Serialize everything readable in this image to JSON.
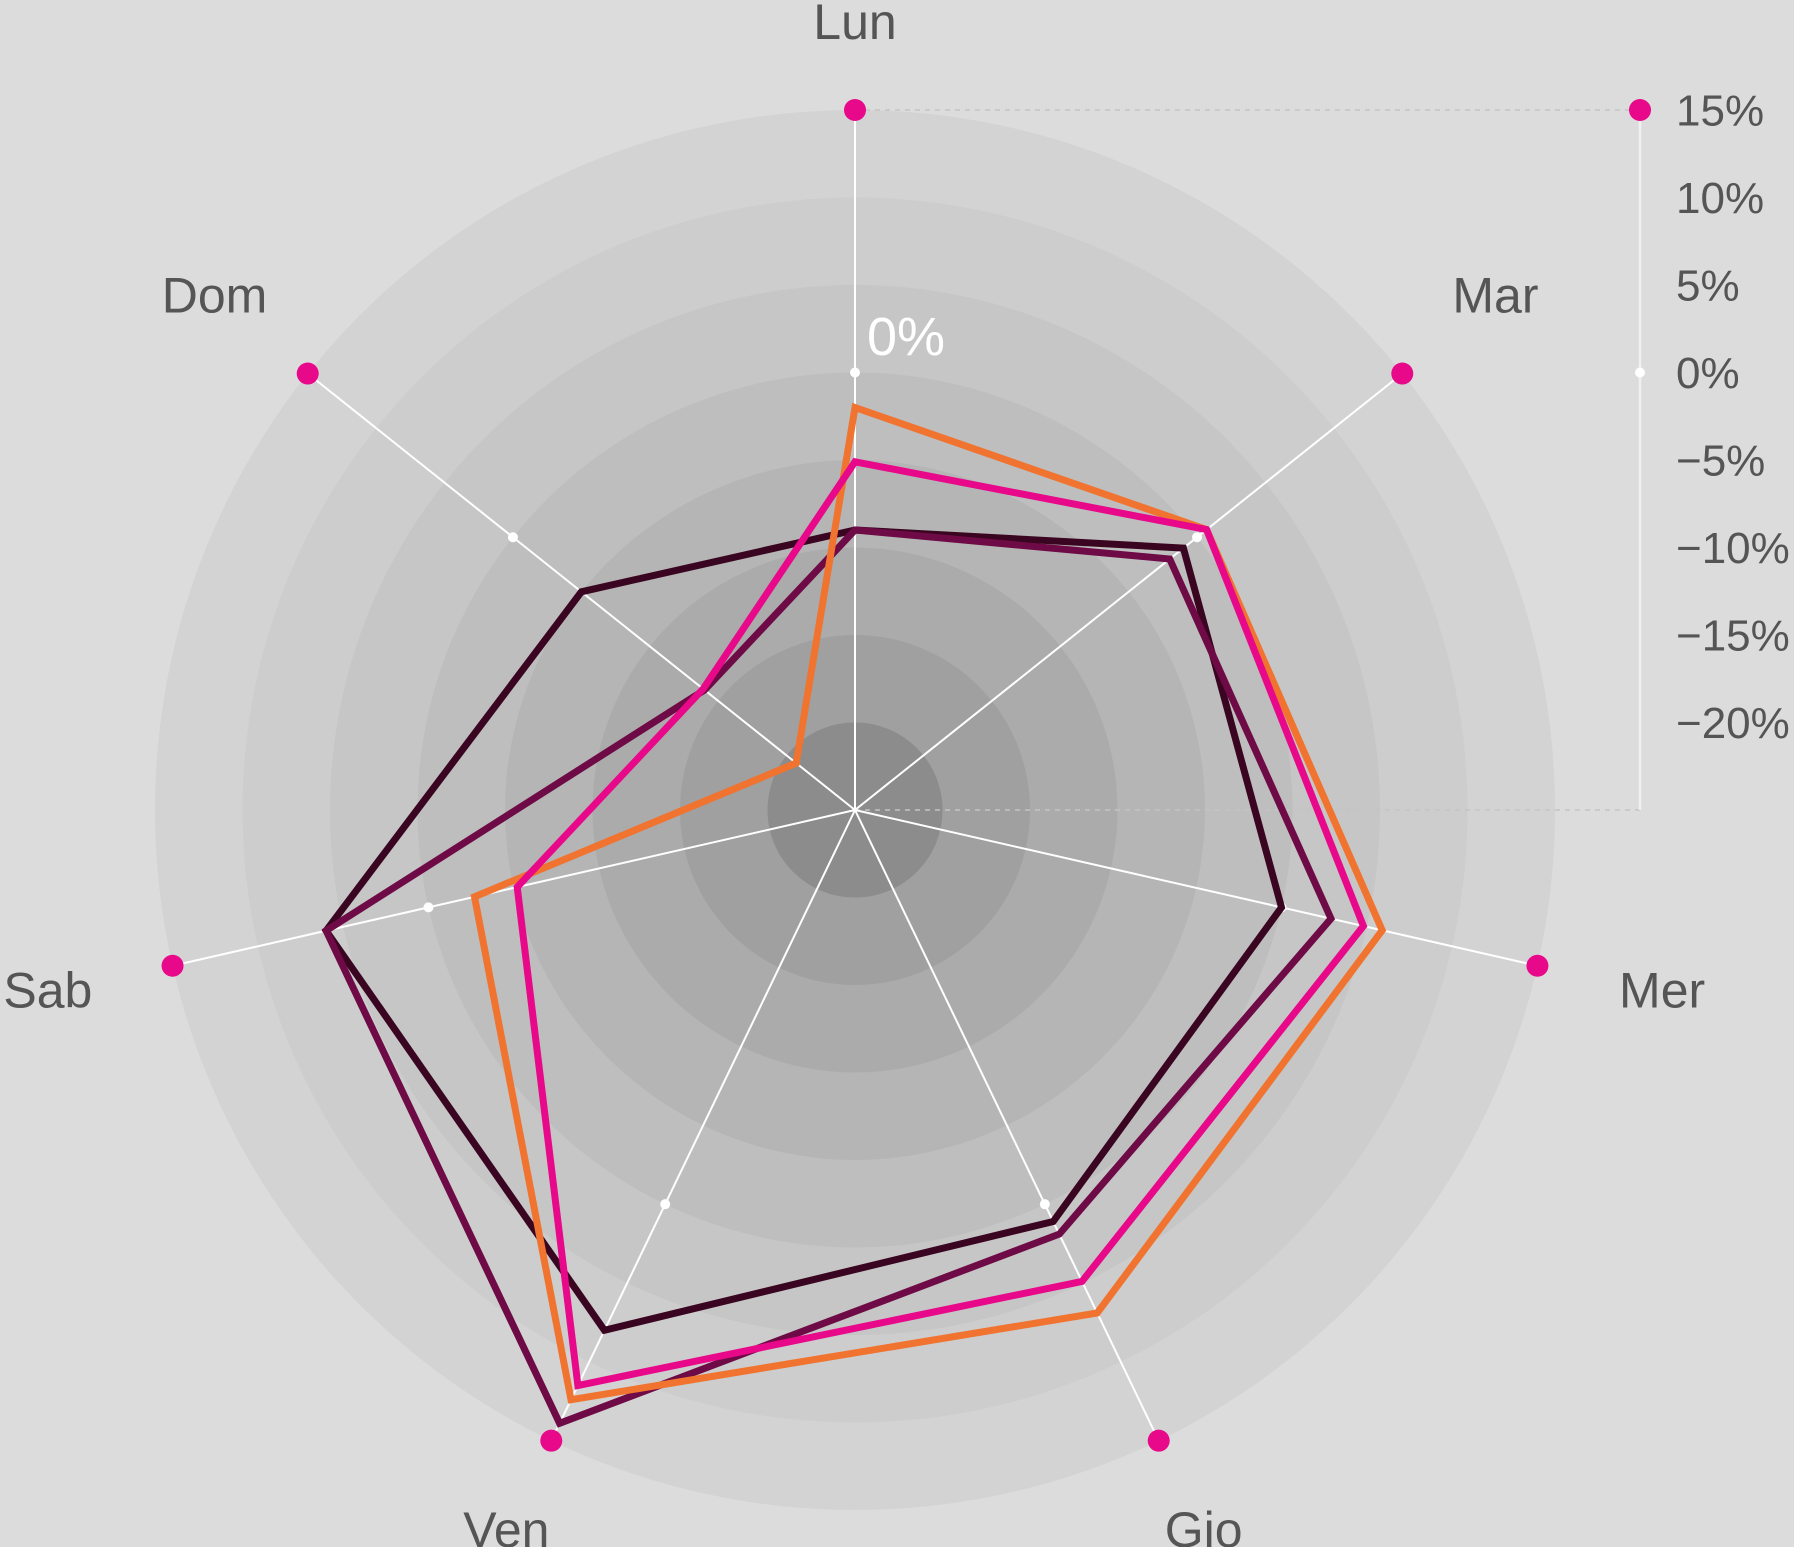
{
  "chart_data": {
    "type": "radar",
    "categories": [
      "Lun",
      "Mar",
      "Mer",
      "Gio",
      "Ven",
      "Sab",
      "Dom"
    ],
    "series": [
      {
        "color": "#3a0520",
        "values": [
          -9,
          -1,
          0,
          1.1,
          8,
          6,
          -5
        ]
      },
      {
        "color": "#6e0a45",
        "values": [
          -9,
          -2,
          2.9,
          1.9,
          13.9,
          6,
          -14
        ]
      },
      {
        "color": "#f07330",
        "values": [
          -2,
          0.7,
          5.9,
          6.9,
          12.4,
          -2.7,
          -20.7
        ]
      },
      {
        "color": "#e8088a",
        "values": [
          -5.1,
          0.7,
          4.8,
          4.9,
          11.5,
          -5.2,
          -13.9
        ]
      }
    ],
    "ylim": [
      -25,
      15
    ],
    "yticks": [
      {
        "value": 15,
        "label": "15%"
      },
      {
        "value": 10,
        "label": "10%"
      },
      {
        "value": 5,
        "label": "5%"
      },
      {
        "value": 0,
        "label": "0%"
      },
      {
        "value": -5,
        "label": "−5%"
      },
      {
        "value": -10,
        "label": "−10%"
      },
      {
        "value": -15,
        "label": "−15%"
      },
      {
        "value": -20,
        "label": "−20%"
      }
    ]
  }
}
